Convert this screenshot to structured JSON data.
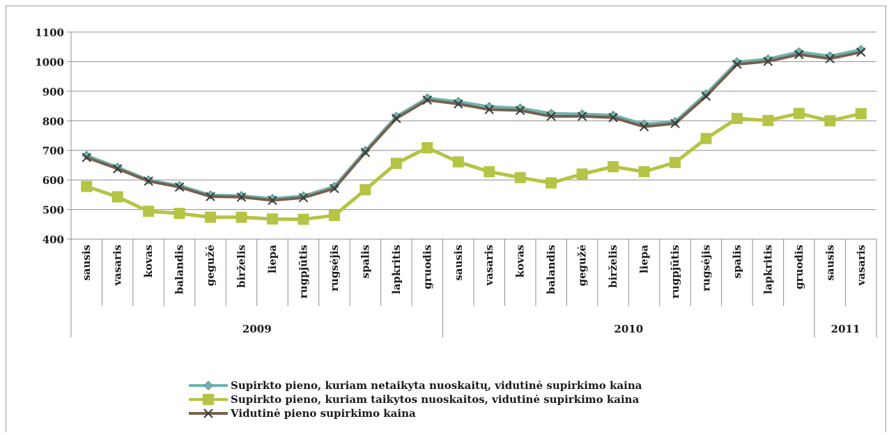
{
  "chart_data": {
    "type": "line",
    "title": "",
    "xlabel": "",
    "ylabel": "",
    "ylim": [
      400,
      1100
    ],
    "yticks": [
      400,
      500,
      600,
      700,
      800,
      900,
      1000,
      1100
    ],
    "grid": true,
    "legend_position": "bottom",
    "categories": [
      "sausis",
      "vasaris",
      "kovas",
      "balandis",
      "gegužė",
      "birželis",
      "liepa",
      "rugpjūtis",
      "rugsėjis",
      "spalis",
      "lapkritis",
      "gruodis",
      "sausis",
      "vasaris",
      "kovas",
      "balandis",
      "gegužė",
      "birželis",
      "liepa",
      "rugpjūtis",
      "rugsėjis",
      "spalis",
      "lapkritis",
      "gruodis",
      "sausis",
      "vasaris"
    ],
    "year_groups": [
      {
        "label": "2009",
        "start": 0,
        "end": 11
      },
      {
        "label": "2010",
        "start": 12,
        "end": 23
      },
      {
        "label": "2011",
        "start": 24,
        "end": 25
      }
    ],
    "series": [
      {
        "name": "Supirkto pieno, kuriam netaikyta nuoskaitų, vidutinė supirkimo kaina",
        "color": "#6fb3b0",
        "marker": "diamond",
        "values": [
          683,
          643,
          600,
          581,
          549,
          547,
          537,
          546,
          578,
          699,
          815,
          877,
          865,
          848,
          843,
          825,
          823,
          819,
          789,
          797,
          891,
          999,
          1009,
          1033,
          1019,
          1041
        ]
      },
      {
        "name": "Supirkto pieno, kuriam taikytos nuoskaitos, vidutinė supirkimo kaina",
        "color": "#b5c444",
        "marker": "square",
        "values": [
          578,
          543,
          494,
          487,
          474,
          474,
          468,
          467,
          480,
          567,
          656,
          709,
          661,
          628,
          608,
          590,
          620,
          645,
          628,
          659,
          740,
          808,
          801,
          825,
          800,
          824
        ]
      },
      {
        "name": "Vidutinė pieno supirkimo kaina",
        "color": "#76604d",
        "marker": "x",
        "values": [
          676,
          638,
          596,
          576,
          544,
          542,
          531,
          540,
          571,
          693,
          808,
          870,
          857,
          838,
          835,
          815,
          815,
          811,
          780,
          791,
          883,
          991,
          1001,
          1024,
          1010,
          1032
        ]
      }
    ]
  }
}
